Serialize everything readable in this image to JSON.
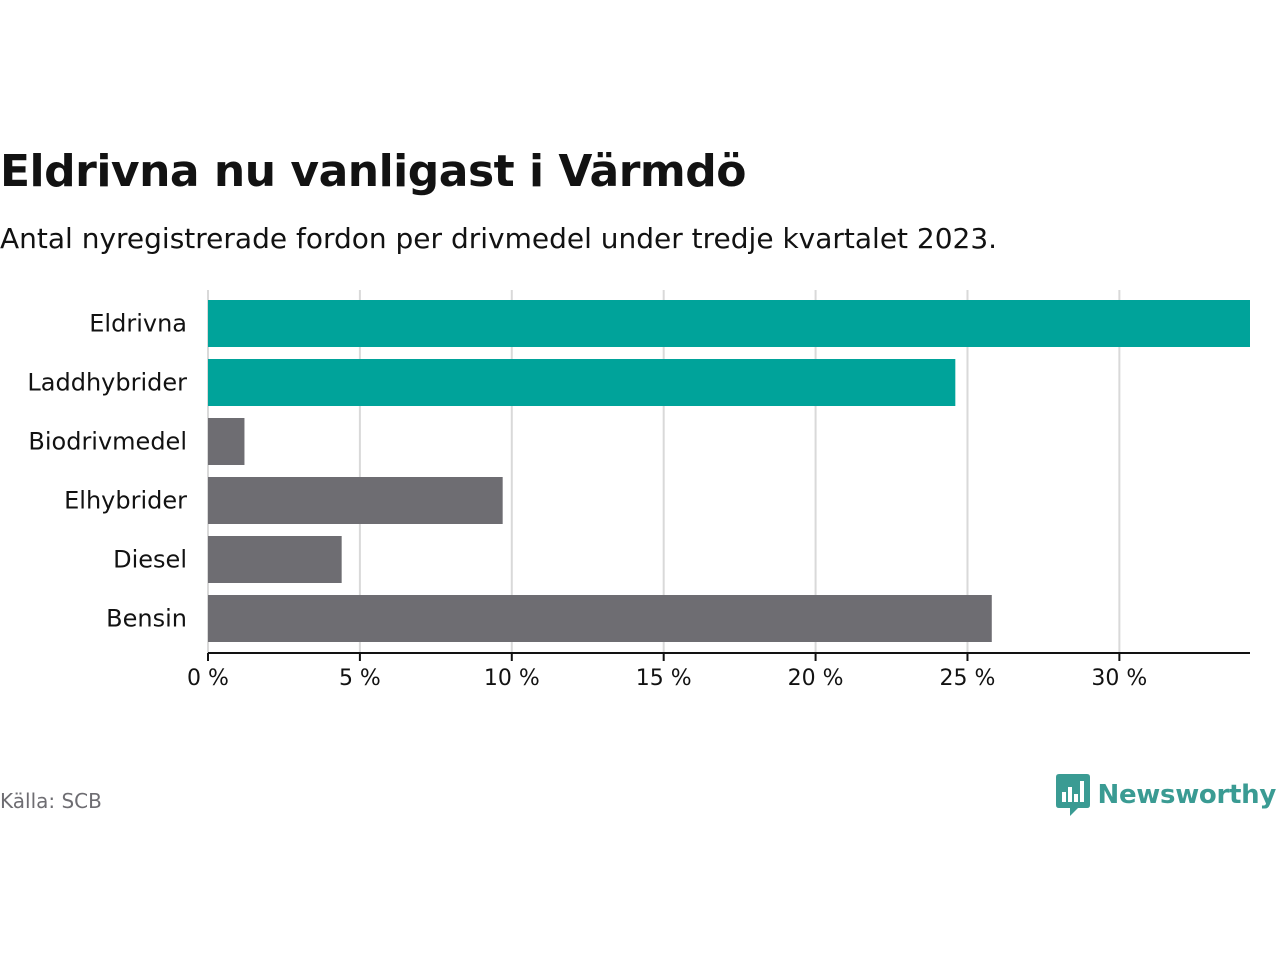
{
  "title": "Eldrivna nu vanligast i Värmdö",
  "subtitle": "Antal nyregistrerade fordon per drivmedel under tredje kvartalet 2023.",
  "source": "Källa: SCB",
  "brand": "Newsworthy",
  "colors": {
    "highlight": "#00a39a",
    "default": "#6e6d72",
    "grid": "#d9d9d9",
    "axis": "#121212",
    "brand": "#3a9b93"
  },
  "chart_data": {
    "type": "bar",
    "orientation": "horizontal",
    "title": "Eldrivna nu vanligast i Värmdö",
    "subtitle": "Antal nyregistrerade fordon per drivmedel under tredje kvartalet 2023.",
    "xlabel": "",
    "ylabel": "",
    "unit": "%",
    "xlim": [
      0,
      34.3
    ],
    "xticks": [
      0,
      5,
      10,
      15,
      20,
      25,
      30
    ],
    "xtick_labels": [
      "0 %",
      "5 %",
      "10 %",
      "15 %",
      "20 %",
      "25 %",
      "30 %"
    ],
    "grid": true,
    "categories": [
      "Eldrivna",
      "Laddhybrider",
      "Biodrivmedel",
      "Elhybrider",
      "Diesel",
      "Bensin"
    ],
    "values": [
      34.3,
      24.6,
      1.2,
      9.7,
      4.4,
      25.8
    ],
    "highlighted": [
      true,
      true,
      false,
      false,
      false,
      false
    ]
  }
}
